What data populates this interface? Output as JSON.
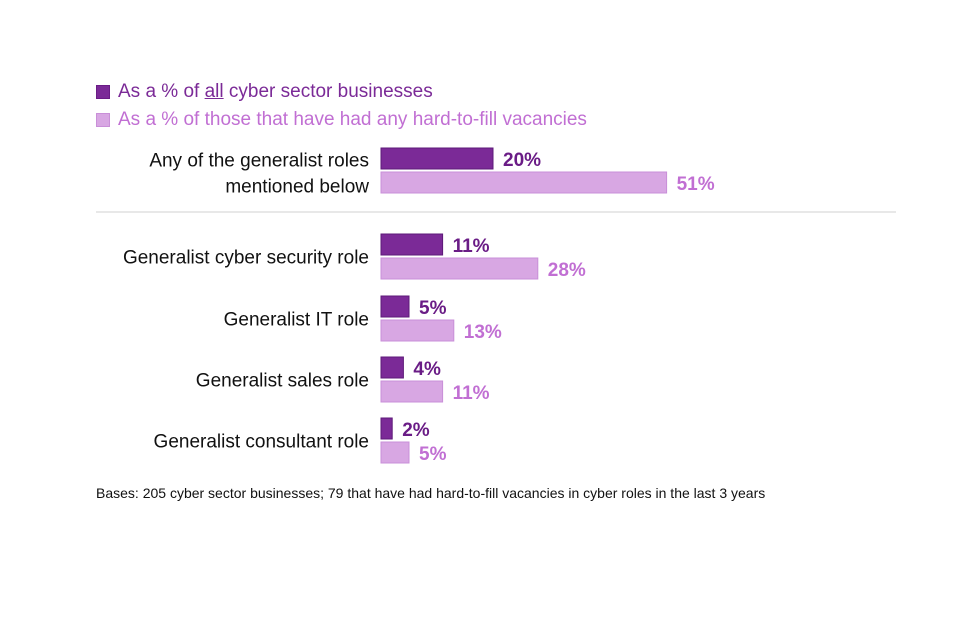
{
  "legend": {
    "all_prefix": "As a % of ",
    "all_emph": "all",
    "all_suffix": " cyber sector businesses",
    "hard_to_fill": "As a % of those that have had any hard-to-fill vacancies"
  },
  "colors": {
    "all": "#7b2a97",
    "hard_to_fill": "#d8a7e3"
  },
  "footnote": "Bases: 205 cyber sector businesses; 79 that have had hard-to-fill vacancies in cyber roles in the last 3 years",
  "chart_data": {
    "type": "bar",
    "orientation": "horizontal",
    "categories": [
      [
        "Any of the generalist roles",
        "mentioned below"
      ],
      [
        "Generalist cyber security role"
      ],
      [
        "Generalist IT role"
      ],
      [
        "Generalist sales role"
      ],
      [
        "Generalist consultant role"
      ]
    ],
    "series": [
      {
        "name": "As a % of all cyber sector businesses",
        "values": [
          20,
          11,
          5,
          4,
          2
        ],
        "labels": [
          "20%",
          "11%",
          "5%",
          "4%",
          "2%"
        ]
      },
      {
        "name": "As a % of those that have had any hard-to-fill vacancies",
        "values": [
          51,
          28,
          13,
          11,
          5
        ],
        "labels": [
          "51%",
          "28%",
          "13%",
          "11%",
          "5%"
        ]
      }
    ],
    "xlim": [
      0,
      100
    ],
    "grid": false,
    "legend_position": "top-left",
    "separator_after_first_category": true
  }
}
